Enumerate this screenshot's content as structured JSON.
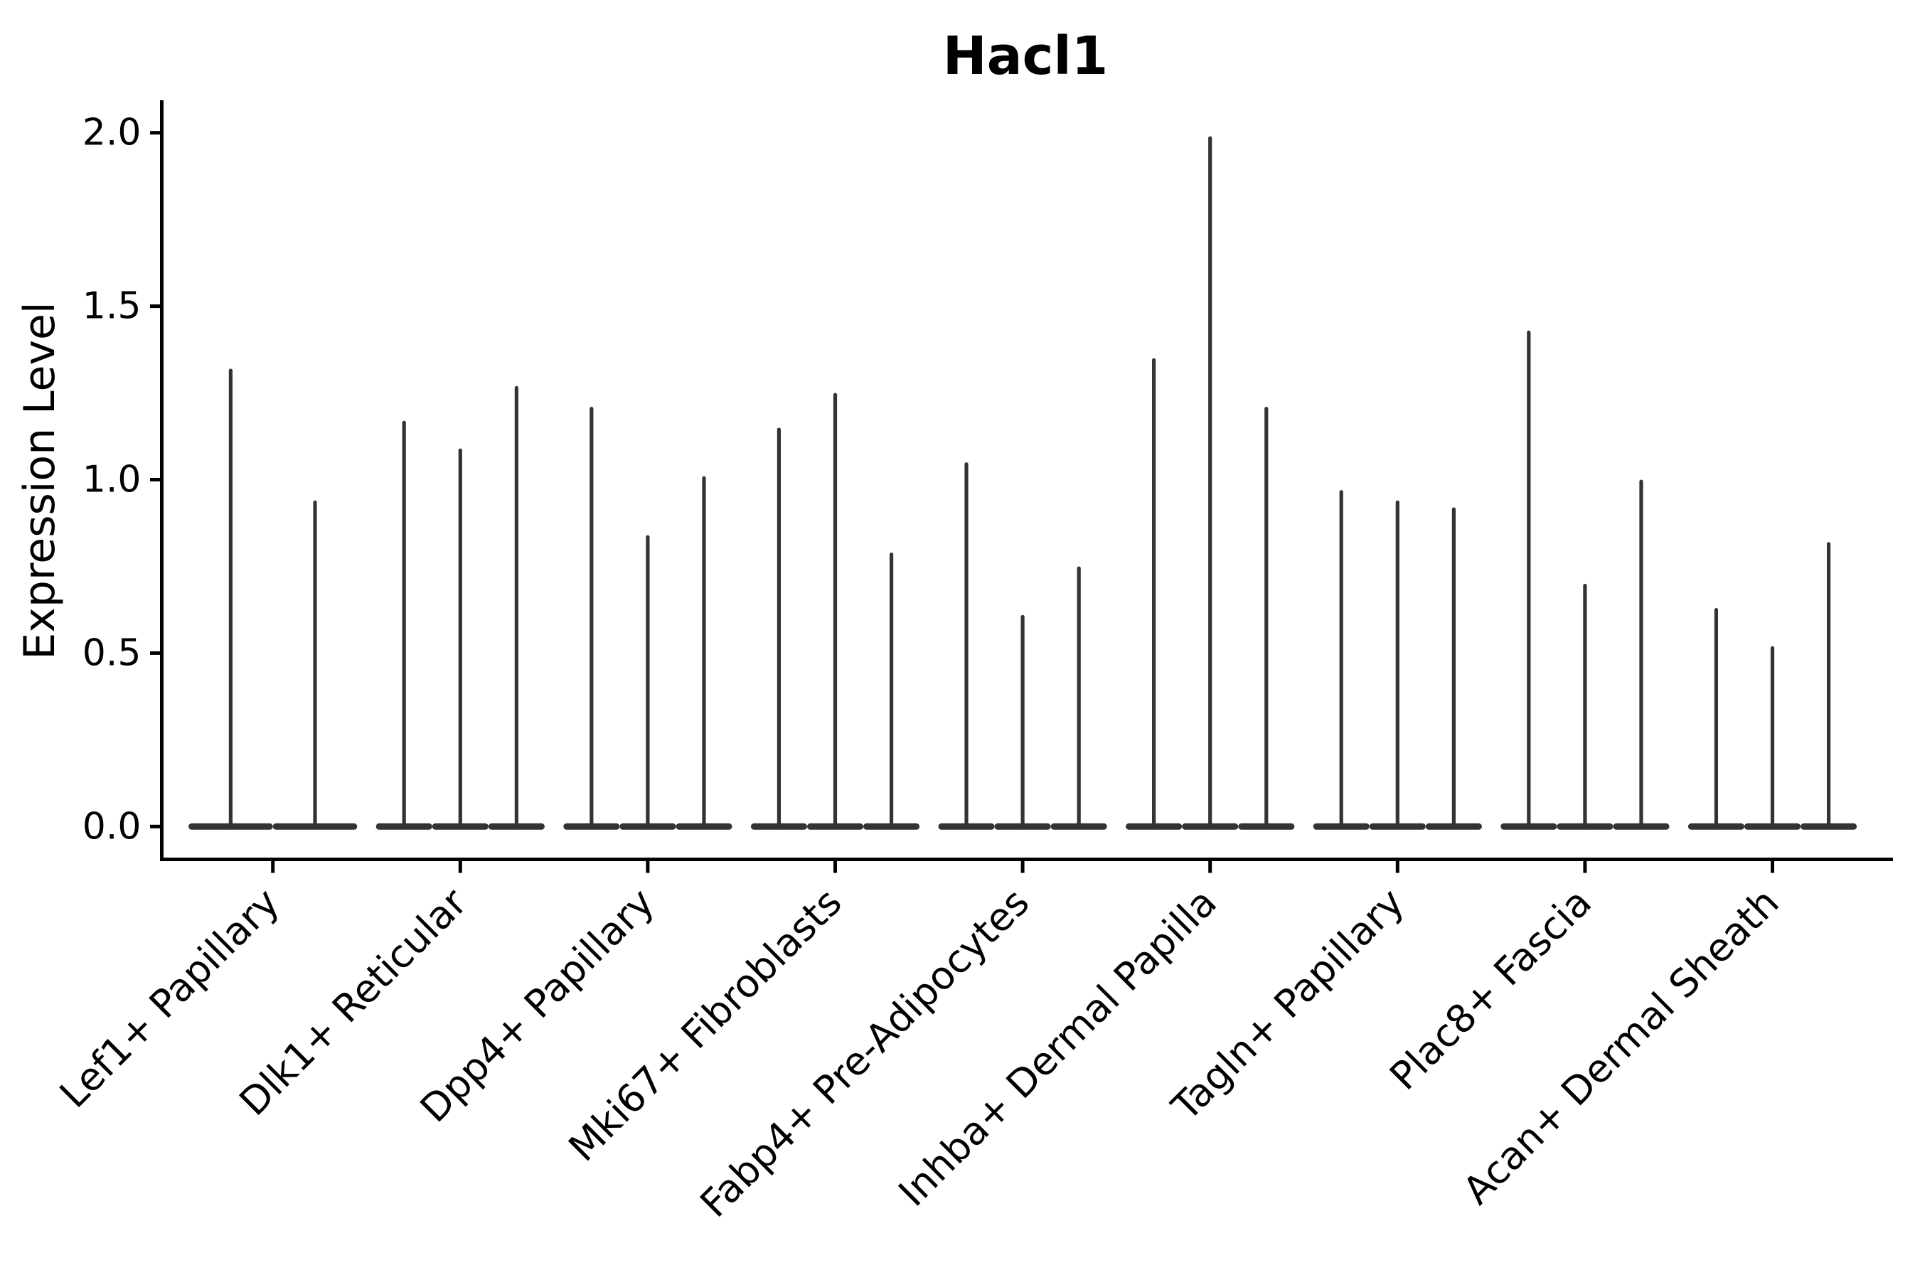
{
  "figure": {
    "background_color": "#ffffff"
  },
  "chart_data": {
    "type": "violin",
    "title": "Hacl1",
    "ylabel": "Expression Level",
    "xlabel": "",
    "ytick_labels": [
      "0.0",
      "0.5",
      "1.0",
      "1.5",
      "2.0"
    ],
    "ytick_values": [
      0.0,
      0.5,
      1.0,
      1.5,
      2.0
    ],
    "ylim": [
      -0.094,
      2.094
    ],
    "grid": false,
    "legend_position": "none",
    "violin_color": "#333333",
    "axis_color": "#000000",
    "categories": [
      "Lef1+ Papillary",
      "Dlk1+ Reticular",
      "Dpp4+ Papillary",
      "Mki67+ Fibroblasts",
      "Fabp4+ Pre-Adipocytes",
      "Inhba+ Dermal Papilla",
      "Tagln+ Papillary",
      "Plac8+ Fascia",
      "Acan+ Dermal Sheath"
    ],
    "groups": [
      {
        "category": "Lef1+ Papillary",
        "violin_maxima": [
          1.32,
          0.94
        ]
      },
      {
        "category": "Dlk1+ Reticular",
        "violin_maxima": [
          1.17,
          1.09,
          1.27
        ]
      },
      {
        "category": "Dpp4+ Papillary",
        "violin_maxima": [
          1.21,
          0.84,
          1.01
        ]
      },
      {
        "category": "Mki67+ Fibroblasts",
        "violin_maxima": [
          1.15,
          1.25,
          0.79
        ]
      },
      {
        "category": "Fabp4+ Pre-Adipocytes",
        "violin_maxima": [
          1.05,
          0.61,
          0.75
        ]
      },
      {
        "category": "Inhba+ Dermal Papilla",
        "violin_maxima": [
          1.35,
          1.99,
          1.21
        ]
      },
      {
        "category": "Tagln+ Papillary",
        "violin_maxima": [
          0.97,
          0.94,
          0.92
        ]
      },
      {
        "category": "Plac8+ Fascia",
        "violin_maxima": [
          1.43,
          0.7,
          1.0
        ]
      },
      {
        "category": "Acan+ Dermal Sheath",
        "violin_maxima": [
          0.63,
          0.52,
          0.82
        ]
      }
    ]
  }
}
